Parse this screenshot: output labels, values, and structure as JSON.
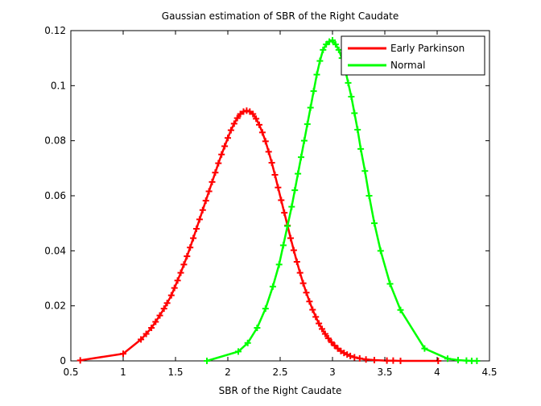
{
  "chart_data": {
    "type": "line",
    "title": "Gaussian estimation of SBR of the Right Caudate",
    "xlabel": "SBR of the Right Caudate",
    "ylabel": "",
    "xlim": [
      0.5,
      4.5
    ],
    "ylim": [
      0,
      0.12
    ],
    "xticks": [
      "0.5",
      "1",
      "1.5",
      "2",
      "2.5",
      "3",
      "3.5",
      "4",
      "4.5"
    ],
    "yticks": [
      "0",
      "0.02",
      "0.04",
      "0.06",
      "0.08",
      "0.1",
      "0.12"
    ],
    "grid": false,
    "legend_position": "top-right",
    "series": [
      {
        "name": "Early Parkinson",
        "color": "#ff0000",
        "marker": "plus",
        "x": [
          0.59,
          1.0,
          1.17,
          1.22,
          1.27,
          1.31,
          1.35,
          1.39,
          1.42,
          1.46,
          1.49,
          1.52,
          1.55,
          1.58,
          1.61,
          1.64,
          1.67,
          1.7,
          1.73,
          1.76,
          1.79,
          1.82,
          1.85,
          1.88,
          1.91,
          1.94,
          1.97,
          2.0,
          2.03,
          2.06,
          2.09,
          2.12,
          2.15,
          2.18,
          2.21,
          2.24,
          2.27,
          2.3,
          2.33,
          2.36,
          2.39,
          2.42,
          2.45,
          2.48,
          2.51,
          2.54,
          2.57,
          2.6,
          2.63,
          2.66,
          2.69,
          2.72,
          2.75,
          2.78,
          2.81,
          2.84,
          2.87,
          2.9,
          2.93,
          2.96,
          2.99,
          3.02,
          3.05,
          3.08,
          3.11,
          3.14,
          3.17,
          3.21,
          3.26,
          3.32,
          3.4,
          3.52,
          3.58,
          3.65,
          4.01
        ],
        "y": [
          0.0002,
          0.0026,
          0.0078,
          0.0098,
          0.012,
          0.0142,
          0.0165,
          0.019,
          0.021,
          0.0238,
          0.0265,
          0.0292,
          0.032,
          0.035,
          0.038,
          0.0412,
          0.0446,
          0.048,
          0.0514,
          0.0548,
          0.0582,
          0.0616,
          0.065,
          0.0684,
          0.0718,
          0.075,
          0.078,
          0.081,
          0.0838,
          0.0862,
          0.0882,
          0.0897,
          0.0906,
          0.0909,
          0.0906,
          0.0897,
          0.088,
          0.0858,
          0.083,
          0.0798,
          0.076,
          0.072,
          0.0676,
          0.063,
          0.0584,
          0.0538,
          0.0492,
          0.0446,
          0.0402,
          0.036,
          0.032,
          0.0282,
          0.0248,
          0.0216,
          0.0186,
          0.016,
          0.0136,
          0.0116,
          0.0098,
          0.0082,
          0.0068,
          0.0056,
          0.0045,
          0.0036,
          0.0029,
          0.0023,
          0.0018,
          0.0013,
          0.0009,
          0.0005,
          0.0003,
          0.0001,
          0.0001,
          0.0,
          0.0
        ]
      },
      {
        "name": "Normal",
        "color": "#00ff00",
        "marker": "plus",
        "x": [
          1.8,
          2.1,
          2.19,
          2.28,
          2.36,
          2.43,
          2.49,
          2.53,
          2.57,
          2.61,
          2.64,
          2.67,
          2.7,
          2.73,
          2.76,
          2.79,
          2.82,
          2.85,
          2.88,
          2.91,
          2.94,
          2.97,
          3.0,
          3.03,
          3.06,
          3.09,
          3.12,
          3.15,
          3.18,
          3.21,
          3.24,
          3.27,
          3.31,
          3.35,
          3.4,
          3.46,
          3.55,
          3.65,
          3.88,
          4.1,
          4.2,
          4.28,
          4.33,
          4.38
        ],
        "y": [
          0.0,
          0.0034,
          0.0065,
          0.012,
          0.019,
          0.027,
          0.035,
          0.042,
          0.049,
          0.056,
          0.062,
          0.068,
          0.074,
          0.08,
          0.086,
          0.092,
          0.098,
          0.104,
          0.109,
          0.113,
          0.115,
          0.116,
          0.1165,
          0.115,
          0.113,
          0.11,
          0.106,
          0.101,
          0.096,
          0.09,
          0.084,
          0.077,
          0.069,
          0.06,
          0.05,
          0.04,
          0.028,
          0.0185,
          0.0045,
          0.0008,
          0.0003,
          0.0001,
          0.0,
          0.0
        ]
      }
    ]
  }
}
